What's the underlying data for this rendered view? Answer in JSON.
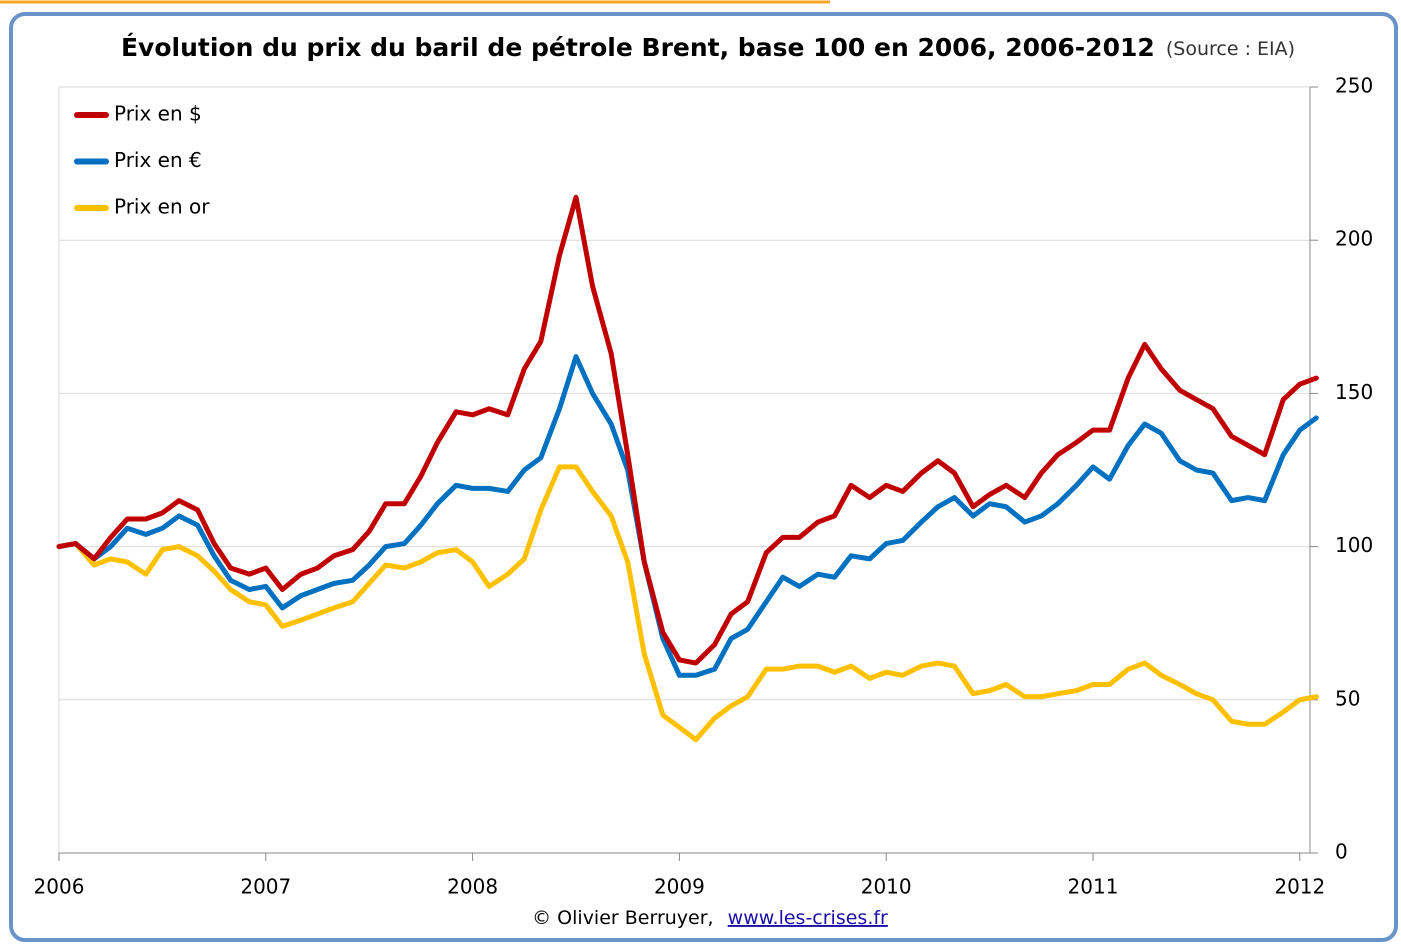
{
  "chart_data": {
    "type": "line",
    "title": "Évolution du prix du baril de pétrole Brent, base 100 en 2006, 2006-2012",
    "subtitle": "(Source : EIA)",
    "credit": "© Olivier Berruyer,",
    "link": "www.les-crises.fr",
    "x": [
      2006,
      2006.08,
      2006.17,
      2006.25,
      2006.33,
      2006.42,
      2006.5,
      2006.58,
      2006.67,
      2006.75,
      2006.83,
      2006.92,
      2007,
      2007.08,
      2007.17,
      2007.25,
      2007.33,
      2007.42,
      2007.5,
      2007.58,
      2007.67,
      2007.75,
      2007.83,
      2007.92,
      2008,
      2008.08,
      2008.17,
      2008.25,
      2008.33,
      2008.42,
      2008.5,
      2008.58,
      2008.67,
      2008.75,
      2008.83,
      2008.92,
      2009,
      2009.08,
      2009.17,
      2009.25,
      2009.33,
      2009.42,
      2009.5,
      2009.58,
      2009.67,
      2009.75,
      2009.83,
      2009.92,
      2010,
      2010.08,
      2010.17,
      2010.25,
      2010.33,
      2010.42,
      2010.5,
      2010.58,
      2010.67,
      2010.75,
      2010.83,
      2010.92,
      2011,
      2011.08,
      2011.17,
      2011.25,
      2011.33,
      2011.42,
      2011.5,
      2011.58,
      2011.67,
      2011.75,
      2011.83,
      2011.92,
      2012,
      2012.08
    ],
    "series": [
      {
        "name": "Prix en $",
        "color": "#c00000",
        "values": [
          100,
          101,
          96,
          103,
          109,
          109,
          111,
          115,
          112,
          101,
          93,
          91,
          93,
          86,
          91,
          93,
          97,
          99,
          105,
          114,
          114,
          123,
          134,
          144,
          143,
          145,
          143,
          158,
          167,
          195,
          214,
          185,
          163,
          130,
          95,
          72,
          63,
          62,
          68,
          78,
          82,
          98,
          103,
          103,
          108,
          110,
          120,
          116,
          120,
          118,
          124,
          128,
          124,
          113,
          117,
          120,
          116,
          124,
          130,
          134,
          138,
          138,
          155,
          166,
          158,
          151,
          148,
          145,
          136,
          133,
          130,
          148,
          153,
          155
        ]
      },
      {
        "name": "Prix en €",
        "color": "#0070c0",
        "values": [
          100,
          101,
          96,
          100,
          106,
          104,
          106,
          110,
          107,
          97,
          89,
          86,
          87,
          80,
          84,
          86,
          88,
          89,
          94,
          100,
          101,
          107,
          114,
          120,
          119,
          119,
          118,
          125,
          129,
          145,
          162,
          150,
          140,
          125,
          95,
          70,
          58,
          58,
          60,
          70,
          73,
          82,
          90,
          87,
          91,
          90,
          97,
          96,
          101,
          102,
          108,
          113,
          116,
          110,
          114,
          113,
          108,
          110,
          114,
          120,
          126,
          122,
          133,
          140,
          137,
          128,
          125,
          124,
          115,
          116,
          115,
          130,
          138,
          142
        ]
      },
      {
        "name": "Prix en or",
        "color": "#ffc000",
        "values": [
          100,
          101,
          94,
          96,
          95,
          91,
          99,
          100,
          97,
          92,
          86,
          82,
          81,
          74,
          76,
          78,
          80,
          82,
          88,
          94,
          93,
          95,
          98,
          99,
          95,
          87,
          91,
          96,
          112,
          126,
          126,
          118,
          110,
          95,
          65,
          45,
          41,
          37,
          44,
          48,
          51,
          60,
          60,
          61,
          61,
          59,
          61,
          57,
          59,
          58,
          61,
          62,
          61,
          52,
          53,
          55,
          51,
          51,
          52,
          53,
          55,
          55,
          60,
          62,
          58,
          55,
          52,
          50,
          43,
          42,
          42,
          46,
          50,
          51
        ]
      }
    ],
    "xlim": [
      2006,
      2012.08
    ],
    "xticks": [
      2006,
      2007,
      2008,
      2009,
      2010,
      2011,
      2012
    ],
    "ylim": [
      0,
      250
    ],
    "yticks": [
      0,
      50,
      100,
      150,
      200,
      250
    ],
    "grid": true,
    "legend": "upper left",
    "y_axis_side": "right"
  }
}
